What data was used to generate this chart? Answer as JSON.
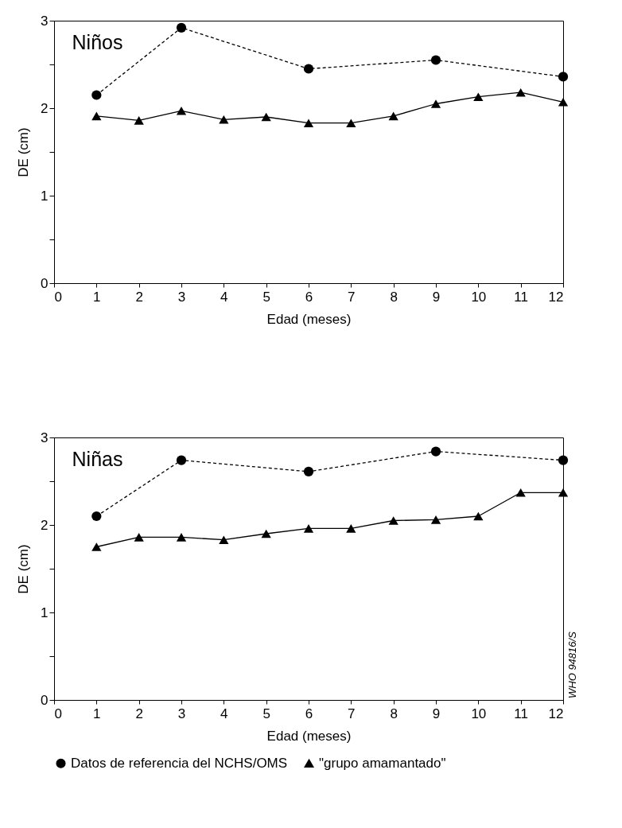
{
  "chart_data": [
    {
      "type": "line",
      "title": "Niños",
      "xlabel": "Edad (meses)",
      "ylabel": "DE (cm)",
      "xlim": [
        0,
        12
      ],
      "xticks": [
        0,
        1,
        2,
        3,
        4,
        5,
        6,
        7,
        8,
        9,
        10,
        11,
        12
      ],
      "ylim": [
        0,
        3
      ],
      "yticks": [
        0,
        {
          "value": 0.5,
          "label": null
        },
        1,
        {
          "value": 1.5,
          "label": null
        },
        2,
        {
          "value": 2.5,
          "label": null
        },
        3
      ],
      "grid": false,
      "legend": false,
      "series": [
        {
          "color": "#000000",
          "marker": "circle",
          "line_style": "dashed",
          "x": [
            1,
            3,
            6,
            9,
            12
          ],
          "values": [
            2.15,
            2.92,
            2.45,
            2.55,
            2.36
          ]
        },
        {
          "color": "#000000",
          "marker": "triangle",
          "line_style": "solid",
          "x": [
            1,
            2,
            3,
            4,
            5,
            6,
            7,
            8,
            9,
            10,
            11,
            12
          ],
          "values": [
            1.91,
            1.86,
            1.97,
            1.87,
            1.9,
            1.83,
            1.83,
            1.91,
            2.05,
            2.13,
            2.18,
            2.07
          ]
        }
      ]
    },
    {
      "type": "line",
      "title": "Niñas",
      "xlabel": "Edad (meses)",
      "ylabel": "DE (cm)",
      "xlim": [
        0,
        12
      ],
      "xticks": [
        0,
        1,
        2,
        3,
        4,
        5,
        6,
        7,
        8,
        9,
        10,
        11,
        12
      ],
      "ylim": [
        0,
        3
      ],
      "yticks": [
        0,
        {
          "value": 0.5,
          "label": null
        },
        1,
        {
          "value": 1.5,
          "label": null
        },
        2,
        {
          "value": 2.5,
          "label": null
        },
        3
      ],
      "grid": false,
      "legend": "bottom",
      "annotations": [
        "WHO 94816/S"
      ],
      "series": [
        {
          "name": "Datos de referencia del NCHS/OMS",
          "color": "#000000",
          "marker": "circle",
          "line_style": "dashed",
          "x": [
            1,
            3,
            6,
            9,
            12
          ],
          "values": [
            2.1,
            2.74,
            2.61,
            2.84,
            2.74
          ]
        },
        {
          "name": "\"grupo amamantado\"",
          "color": "#000000",
          "marker": "triangle",
          "line_style": "solid",
          "x": [
            1,
            2,
            3,
            4,
            5,
            6,
            7,
            8,
            9,
            10,
            11,
            12
          ],
          "values": [
            1.75,
            1.86,
            1.86,
            1.83,
            1.9,
            1.96,
            1.96,
            2.05,
            2.06,
            2.1,
            2.37,
            2.37
          ]
        }
      ]
    }
  ]
}
